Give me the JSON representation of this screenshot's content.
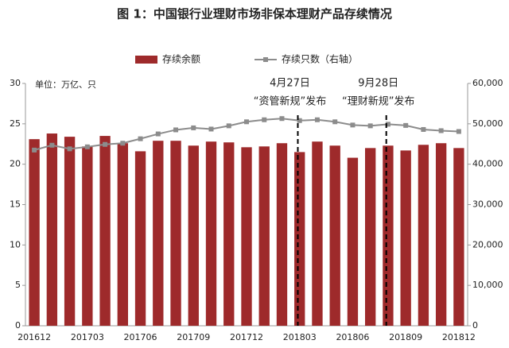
{
  "chart_data": {
    "type": "bar_line",
    "title": "图 1：中国银行业理财市场非保本理财产品存续情况",
    "unit_label": "单位：万亿、只",
    "categories": [
      "201612",
      null,
      null,
      "201703",
      null,
      null,
      "201706",
      null,
      null,
      "201709",
      null,
      null,
      "201712",
      null,
      null,
      "201803",
      null,
      null,
      "201806",
      null,
      null,
      "201809",
      null,
      null,
      "201812"
    ],
    "series": [
      {
        "name": "存续余额",
        "type": "bar",
        "color": "#9e2a2b",
        "values": [
          23.1,
          23.8,
          23.4,
          22.2,
          23.5,
          22.6,
          21.6,
          22.9,
          22.9,
          22.3,
          22.8,
          22.7,
          22.1,
          22.2,
          22.6,
          21.5,
          22.8,
          22.3,
          20.8,
          22.0,
          22.3,
          21.7,
          22.4,
          22.6,
          22.0
        ]
      },
      {
        "name": "存续只数（右轴）",
        "type": "line",
        "axis": "y2",
        "color": "#8c8c8c",
        "values": [
          43500,
          44700,
          43800,
          44300,
          44900,
          45200,
          46300,
          47500,
          48500,
          49000,
          48700,
          49500,
          50500,
          51000,
          51300,
          50800,
          51000,
          50500,
          49700,
          49500,
          49900,
          49600,
          48600,
          48300,
          48100
        ]
      }
    ],
    "annotations": [
      {
        "date": "4月27日",
        "text": "“资管新规”发布"
      },
      {
        "date": "9月28日",
        "text": "“理财新规”发布"
      }
    ],
    "ylim": [
      0,
      30
    ],
    "yticks": [
      0,
      5,
      10,
      15,
      20,
      25,
      30
    ],
    "y2lim": [
      0,
      60000
    ],
    "y2ticks": [
      0,
      {
        "value": 10000,
        "label": "10,000"
      },
      {
        "value": 20000,
        "label": "20,000"
      },
      {
        "value": 30000,
        "label": "30,000"
      },
      {
        "value": 40000,
        "label": "40,000"
      },
      {
        "value": 50000,
        "label": "50,000"
      },
      {
        "value": 60000,
        "label": "60,000"
      }
    ]
  }
}
